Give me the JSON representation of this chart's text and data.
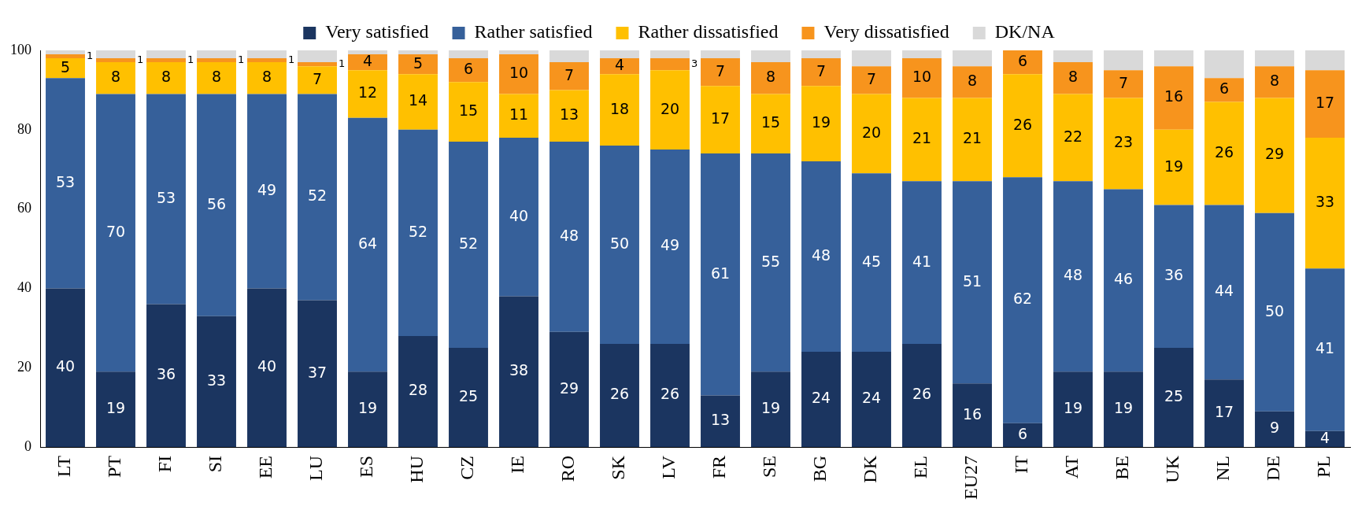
{
  "chart_data": {
    "type": "bar",
    "stacked": true,
    "categories": [
      "LT",
      "PT",
      "FI",
      "SI",
      "EE",
      "LU",
      "ES",
      "HU",
      "CZ",
      "IE",
      "RO",
      "SK",
      "LV",
      "FR",
      "SE",
      "BG",
      "DK",
      "EL",
      "EU27",
      "IT",
      "AT",
      "BE",
      "UK",
      "NL",
      "DE",
      "PL"
    ],
    "series": [
      {
        "name": "Very satisfied",
        "color": "#1b3560",
        "values": [
          40,
          19,
          36,
          33,
          40,
          37,
          19,
          28,
          25,
          38,
          29,
          26,
          26,
          13,
          19,
          24,
          24,
          26,
          16,
          6,
          19,
          19,
          25,
          17,
          9,
          4
        ],
        "value_labels": [
          "40",
          "19",
          "36",
          "33",
          "40",
          "37",
          "19",
          "28",
          "25",
          "38",
          "29",
          "26",
          "26",
          "13",
          "19",
          "24",
          "24",
          "26",
          "16",
          "6",
          "19",
          "19",
          "25",
          "17",
          "9",
          "4"
        ]
      },
      {
        "name": "Rather satisfied",
        "color": "#36609a",
        "values": [
          53,
          70,
          53,
          56,
          49,
          52,
          64,
          52,
          52,
          40,
          48,
          50,
          49,
          61,
          55,
          48,
          45,
          41,
          51,
          62,
          48,
          46,
          36,
          44,
          50,
          41
        ],
        "value_labels": [
          "53",
          "70",
          "53",
          "56",
          "49",
          "52",
          "64",
          "52",
          "52",
          "40",
          "48",
          "50",
          "49",
          "61",
          "55",
          "48",
          "45",
          "41",
          "51",
          "62",
          "48",
          "46",
          "36",
          "44",
          "50",
          "41"
        ]
      },
      {
        "name": "Rather dissatisfied",
        "color": "#ffc000",
        "values": [
          5,
          8,
          8,
          8,
          8,
          7,
          12,
          14,
          15,
          11,
          13,
          18,
          20,
          17,
          15,
          19,
          20,
          21,
          21,
          26,
          22,
          23,
          19,
          26,
          29,
          33
        ],
        "value_labels": [
          "5",
          "8",
          "8",
          "8",
          "8",
          "7",
          "12",
          "14",
          "15",
          "11",
          "13",
          "18",
          "20",
          "17",
          "15",
          "19",
          "20",
          "21",
          "21",
          "26",
          "22",
          "23",
          "19",
          "26",
          "29",
          "33"
        ]
      },
      {
        "name": "Very dissatisfied",
        "color": "#f7941d",
        "values": [
          1,
          1,
          1,
          1,
          1,
          1,
          4,
          5,
          6,
          10,
          7,
          4,
          3,
          7,
          8,
          7,
          7,
          10,
          8,
          6,
          8,
          7,
          16,
          6,
          8,
          17
        ],
        "value_labels": [
          "1",
          "1",
          "1",
          "1",
          "1",
          "1",
          "4",
          "5",
          "6",
          "10",
          "7",
          "4",
          "3",
          "7",
          "8",
          "7",
          "7",
          "10",
          "8",
          "6",
          "8",
          "7",
          "16",
          "6",
          "8",
          "17"
        ]
      },
      {
        "name": "DK/NA",
        "color": "#d9d9d9",
        "values": [
          1,
          2,
          2,
          2,
          2,
          3,
          1,
          1,
          2,
          1,
          3,
          2,
          2,
          2,
          3,
          2,
          4,
          2,
          4,
          0,
          3,
          5,
          4,
          7,
          4,
          5
        ]
      }
    ],
    "ylim": [
      0,
      100
    ],
    "yticks": [
      0,
      20,
      40,
      60,
      80,
      100
    ],
    "grid": false,
    "legend": "top"
  }
}
